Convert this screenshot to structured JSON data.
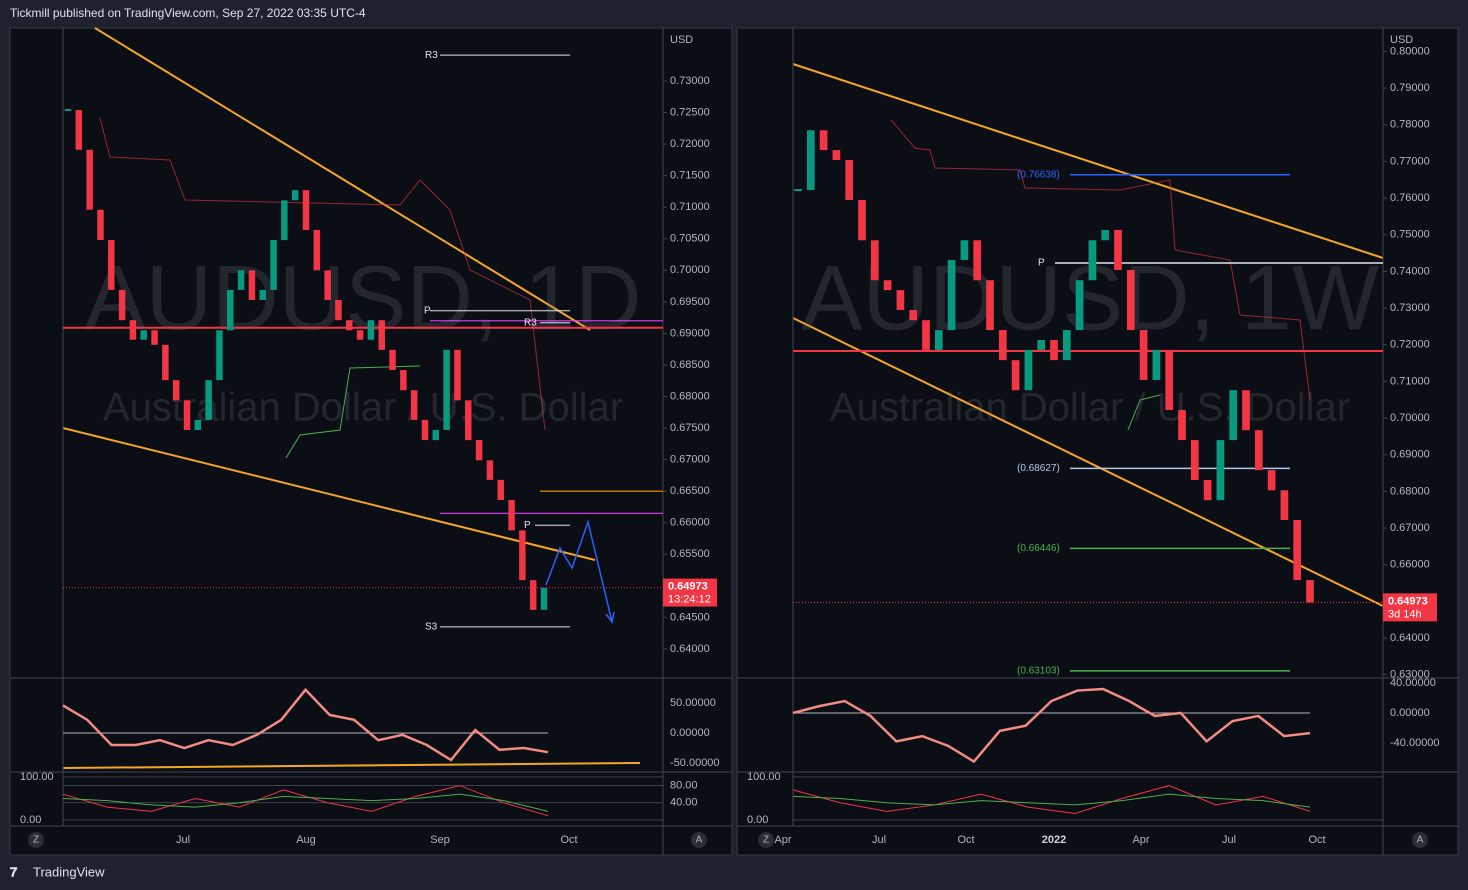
{
  "header": {
    "text": "Tickmill published on TradingView.com, Sep 27, 2022 03:35 UTC-4"
  },
  "footer": {
    "brand": "TradingView"
  },
  "chart_data": [
    {
      "type": "candlestick",
      "title": "AUDUSD, 1D",
      "subtitle": "Australian Dollar / U.S. Dollar",
      "currency": "USD",
      "closes": [
        0.7254,
        0.7191,
        0.7096,
        0.7048,
        0.6969,
        0.6921,
        0.689,
        0.6905,
        0.6882,
        0.6826,
        0.6794,
        0.6747,
        0.6763,
        0.6826,
        0.6905,
        0.6969,
        0.7,
        0.6953,
        0.6969,
        0.7048,
        0.7111,
        0.7127,
        0.7064,
        0.7,
        0.6953,
        0.6921,
        0.6905,
        0.689,
        0.6921,
        0.6874,
        0.6842,
        0.681,
        0.6763,
        0.6731,
        0.6747,
        0.6874,
        0.6794,
        0.6731,
        0.6699,
        0.6668,
        0.6636,
        0.6588,
        0.6509,
        0.6462,
        0.6497
      ],
      "up_color": "#089981",
      "down_color": "#f23645",
      "ylim": [
        0.6354,
        0.7384
      ],
      "yticks": [
        {
          "value": 0.64,
          "label": "0.64000"
        },
        {
          "value": 0.645,
          "label": "0.64500"
        },
        {
          "value": 0.65,
          "label": "0.65000"
        },
        {
          "value": 0.655,
          "label": "0.65500"
        },
        {
          "value": 0.66,
          "label": "0.66000"
        },
        {
          "value": 0.665,
          "label": "0.66500"
        },
        {
          "value": 0.67,
          "label": "0.67000"
        },
        {
          "value": 0.675,
          "label": "0.67500"
        },
        {
          "value": 0.68,
          "label": "0.68000"
        },
        {
          "value": 0.685,
          "label": "0.68500"
        },
        {
          "value": 0.69,
          "label": "0.69000"
        },
        {
          "value": 0.695,
          "label": "0.69500"
        },
        {
          "value": 0.7,
          "label": "0.70000"
        },
        {
          "value": 0.705,
          "label": "0.70500"
        },
        {
          "value": 0.71,
          "label": "0.71000"
        },
        {
          "value": 0.715,
          "label": "0.71500"
        },
        {
          "value": 0.72,
          "label": "0.72000"
        },
        {
          "value": 0.725,
          "label": "0.72500"
        },
        {
          "value": 0.73,
          "label": "0.73000"
        }
      ],
      "x_labels": [
        "Jul",
        "Aug",
        "Sep",
        "Oct"
      ],
      "levels": [
        {
          "label": "R3",
          "value": 0.7341
        },
        {
          "label": "P",
          "value": 0.6936
        },
        {
          "label": "R3",
          "value": 0.6917
        },
        {
          "label": "P",
          "value": 0.6596
        },
        {
          "label": "S3",
          "value": 0.6435
        }
      ],
      "lines": [
        {
          "value": 0.6909,
          "color": "#f23645"
        },
        {
          "value": 0.665,
          "color": "#ff9800"
        },
        {
          "value": 0.6615,
          "color": "#e040fb"
        },
        {
          "value": 0.692,
          "color": "#e040fb"
        }
      ],
      "last_price": {
        "value": 0.64973,
        "label": "0.64973"
      },
      "countdown": "13:24:12",
      "oscillator": {
        "ylim": [
          -65,
          91.7
        ],
        "yticks": [
          {
            "value": 50,
            "label": "50.00000"
          },
          {
            "value": 0,
            "label": "0.00000"
          },
          {
            "value": -50,
            "label": "-50.00000"
          }
        ],
        "color": "#f28b82",
        "values": [
          46,
          22,
          -20,
          -20,
          -12,
          -25,
          -12,
          -20,
          -3,
          22,
          72,
          30,
          22,
          -12,
          -3,
          -20,
          -45,
          5,
          -28,
          -25,
          -32
        ]
      },
      "stochastic": {
        "ylim": [
          -14,
          111.6
        ],
        "yticks": [
          {
            "value": 100,
            "label": "100.00"
          },
          {
            "value": 80,
            "label": "80.00"
          },
          {
            "value": 40,
            "label": "40.00"
          },
          {
            "value": 0,
            "label": "0.00"
          }
        ],
        "series": [
          {
            "color": "#f23645",
            "values": [
              60,
              30,
              20,
              50,
              30,
              70,
              40,
              20,
              55,
              80,
              40,
              10
            ]
          },
          {
            "color": "#4caf50",
            "values": [
              50,
              45,
              35,
              30,
              40,
              55,
              50,
              45,
              50,
              60,
              45,
              20
            ]
          }
        ]
      },
      "scale_buttons": [
        "Z",
        "A"
      ]
    },
    {
      "type": "candlestick",
      "title": "AUDUSD, 1W",
      "subtitle": "Australian Dollar / U.S. Dollar",
      "currency": "USD",
      "closes": [
        0.7622,
        0.7785,
        0.7731,
        0.7704,
        0.7595,
        0.7485,
        0.7376,
        0.7349,
        0.7295,
        0.7267,
        0.7186,
        0.724,
        0.7431,
        0.7485,
        0.7376,
        0.724,
        0.7158,
        0.7076,
        0.7186,
        0.7213,
        0.7158,
        0.724,
        0.7376,
        0.7485,
        0.7513,
        0.7404,
        0.724,
        0.7104,
        0.7186,
        0.7022,
        0.694,
        0.6831,
        0.6776,
        0.694,
        0.7076,
        0.6967,
        0.6858,
        0.6803,
        0.6722,
        0.6558,
        0.6497
      ],
      "up_color": "#089981",
      "down_color": "#f23645",
      "ylim": [
        0.6291,
        0.8064
      ],
      "yticks": [
        {
          "value": 0.63,
          "label": "0.63000"
        },
        {
          "value": 0.64,
          "label": "0.64000"
        },
        {
          "value": 0.65,
          "label": "0.65000"
        },
        {
          "value": 0.66,
          "label": "0.66000"
        },
        {
          "value": 0.67,
          "label": "0.67000"
        },
        {
          "value": 0.68,
          "label": "0.68000"
        },
        {
          "value": 0.69,
          "label": "0.69000"
        },
        {
          "value": 0.7,
          "label": "0.70000"
        },
        {
          "value": 0.71,
          "label": "0.71000"
        },
        {
          "value": 0.72,
          "label": "0.72000"
        },
        {
          "value": 0.73,
          "label": "0.73000"
        },
        {
          "value": 0.74,
          "label": "0.74000"
        },
        {
          "value": 0.75,
          "label": "0.75000"
        },
        {
          "value": 0.76,
          "label": "0.76000"
        },
        {
          "value": 0.77,
          "label": "0.77000"
        },
        {
          "value": 0.78,
          "label": "0.78000"
        },
        {
          "value": 0.79,
          "label": "0.79000"
        },
        {
          "value": 0.8,
          "label": "0.80000"
        }
      ],
      "x_labels": [
        "Apr",
        "Jul",
        "Oct",
        "2022",
        "Apr",
        "Jul",
        "Oct"
      ],
      "levels": [
        {
          "label": "(0.76638)",
          "value": 0.76638
        },
        {
          "label": "P",
          "value": 0.7423
        },
        {
          "label": "(0.68627)",
          "value": 0.68627
        },
        {
          "label": "(0.66446)",
          "value": 0.66446
        },
        {
          "label": "(0.63103)",
          "value": 0.63103
        }
      ],
      "lines": [
        {
          "value": 0.7183,
          "color": "#f23645"
        }
      ],
      "last_price": {
        "value": 0.64973,
        "label": "0.64973"
      },
      "countdown": "3d 14h",
      "oscillator": {
        "ylim": [
          -79,
          46.8
        ],
        "yticks": [
          {
            "value": 40,
            "label": "40.00000"
          },
          {
            "value": 0,
            "label": "0.00000"
          },
          {
            "value": -40,
            "label": "-40.00000"
          }
        ],
        "color": "#f28b82",
        "values": [
          0,
          9,
          16,
          -4,
          -38,
          -31,
          -44,
          -65,
          -24,
          -17,
          16,
          30,
          32,
          16,
          -4,
          0,
          -38,
          -11,
          -4,
          -31,
          -27
        ]
      },
      "stochastic": {
        "ylim": [
          -14,
          111.6
        ],
        "yticks": [
          {
            "value": 100,
            "label": "100.00"
          },
          {
            "value": 0,
            "label": "0.00"
          }
        ],
        "series": [
          {
            "color": "#f23645",
            "values": [
              70,
              40,
              20,
              35,
              60,
              30,
              15,
              50,
              80,
              35,
              55,
              20
            ]
          },
          {
            "color": "#4caf50",
            "values": [
              55,
              50,
              40,
              35,
              45,
              40,
              35,
              45,
              60,
              50,
              45,
              30
            ]
          }
        ]
      },
      "scale_buttons": [
        "Z",
        "A"
      ]
    }
  ]
}
